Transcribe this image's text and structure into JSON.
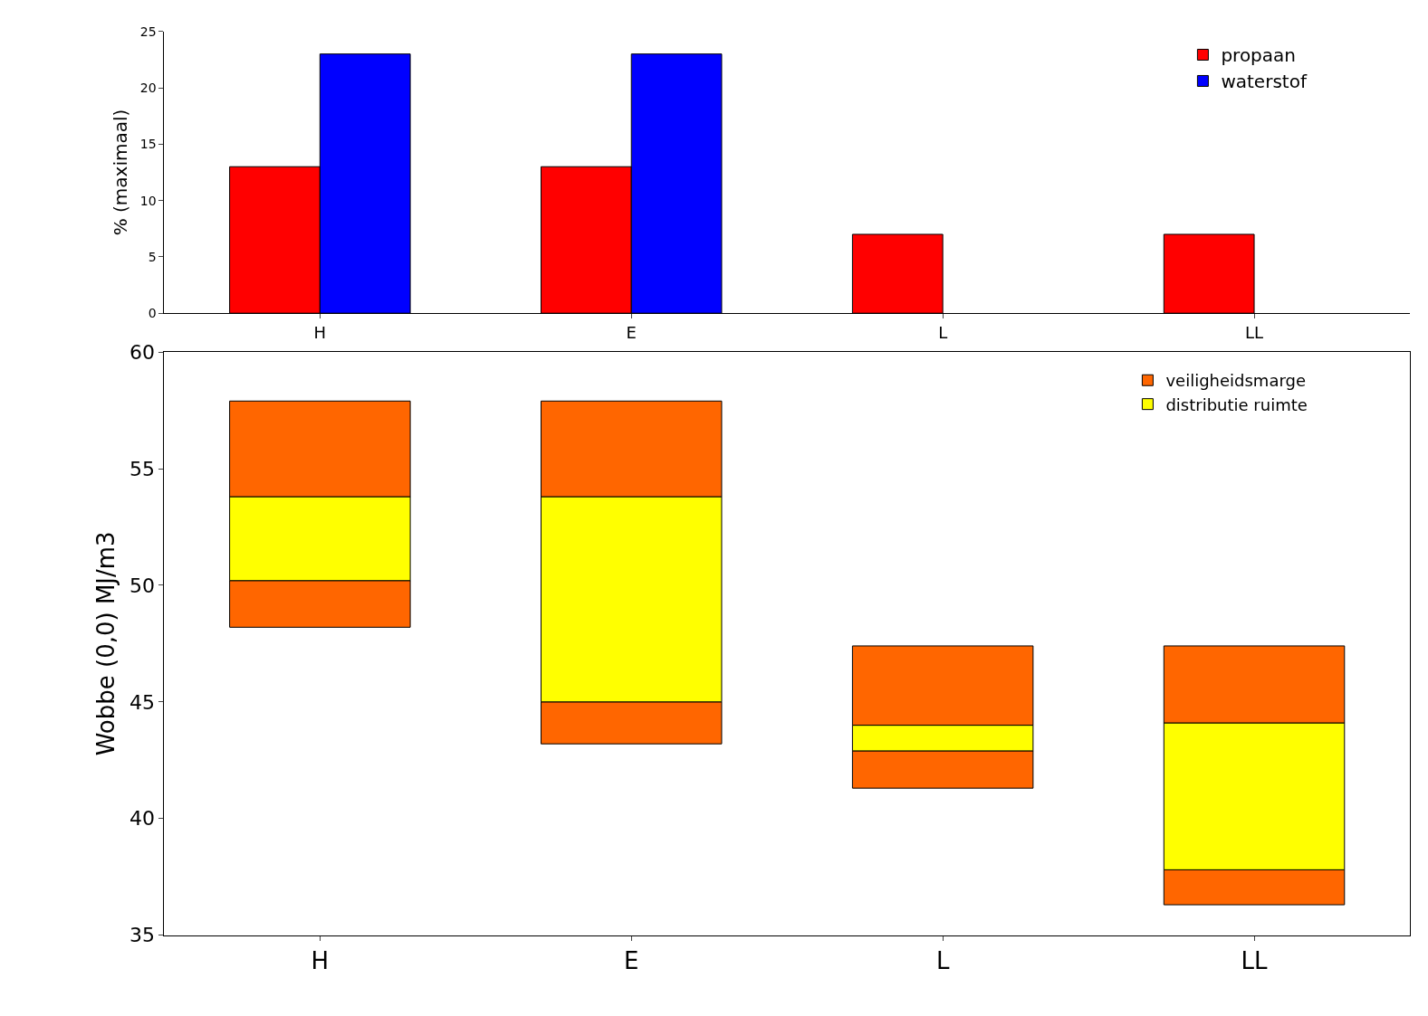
{
  "chart_data": [
    {
      "type": "bar",
      "ylabel": "% (maximaal)",
      "categories": [
        "H",
        "E",
        "L",
        "LL"
      ],
      "ylim": [
        0,
        25
      ],
      "yticks": [
        0,
        5,
        10,
        15,
        20,
        25
      ],
      "legend": "top right",
      "series": [
        {
          "name": "propaan",
          "color": "#ff0000",
          "values": [
            13,
            13,
            7,
            7
          ]
        },
        {
          "name": "waterstof",
          "color": "#0000ff",
          "values": [
            23,
            23,
            null,
            null
          ]
        }
      ]
    },
    {
      "type": "bar",
      "ylabel": "Wobbe (0,0) MJ/m3",
      "categories": [
        "H",
        "E",
        "L",
        "LL"
      ],
      "ylim": [
        35,
        60
      ],
      "yticks": [
        35,
        40,
        45,
        50,
        55,
        60
      ],
      "legend": "top right",
      "series": [
        {
          "name": "veiligheidsmarge",
          "color": "#ff6600",
          "base": [
            48.2,
            43.2,
            41.3,
            36.3
          ],
          "values": [
            2.0,
            1.8,
            1.6,
            1.5
          ]
        },
        {
          "name": "distributie ruimte",
          "color": "#ffff00",
          "base": [
            50.2,
            45.0,
            42.9,
            37.8
          ],
          "values": [
            3.6,
            8.8,
            1.1,
            6.3
          ]
        },
        {
          "color": "#ff6600",
          "base": [
            53.8,
            53.8,
            44.0,
            44.1
          ],
          "values": [
            4.1,
            4.1,
            3.4,
            3.3
          ]
        }
      ]
    }
  ]
}
